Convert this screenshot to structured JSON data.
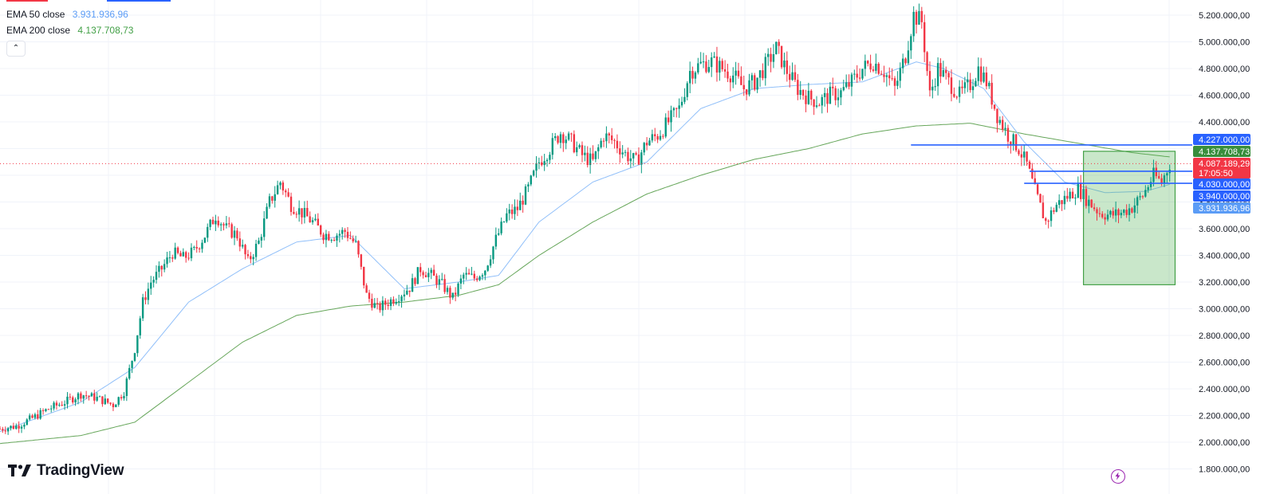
{
  "legend": {
    "ema50": {
      "name": "EMA 50 close",
      "value": "3.931.936,96",
      "color": "#5b9cf6"
    },
    "ema200": {
      "name": "EMA 200 close",
      "value": "4.137.708,73",
      "color": "#43a047"
    },
    "collapse_glyph": "⌃"
  },
  "branding": {
    "logo_text": "TradingView"
  },
  "colors": {
    "up": "#089981",
    "down": "#f23645",
    "ema50": "#90bff9",
    "ema200": "#66a65a",
    "hline": "#2962ff",
    "box_fill": "rgba(76,175,80,0.30)",
    "box_stroke": "#43a047",
    "price_line": "#f23645"
  },
  "chart_data": {
    "type": "candlestick",
    "yaxis": {
      "position": "right",
      "range": [
        1700000,
        5300000
      ],
      "tick_labels": [
        "5.200.000,00",
        "5.000.000,00",
        "4.800.000,00",
        "4.600.000,00",
        "4.400.000,00",
        "4.200.000,00",
        "4.000.000,00",
        "3.800.000,00",
        "3.600.000,00",
        "3.400.000,00",
        "3.200.000,00",
        "3.000.000,00",
        "2.800.000,00",
        "2.600.000,00",
        "2.400.000,00",
        "2.200.000,00",
        "2.000.000,00",
        "1.800.000,00"
      ],
      "tick_values": [
        5200000,
        5000000,
        4800000,
        4600000,
        4400000,
        4200000,
        4000000,
        3800000,
        3600000,
        3400000,
        3200000,
        3000000,
        2800000,
        2600000,
        2400000,
        2200000,
        2000000,
        1800000
      ]
    },
    "grid": true,
    "price_close_path": [
      [
        0,
        2100000
      ],
      [
        6,
        2120000
      ],
      [
        12,
        2180000
      ],
      [
        18,
        2250000
      ],
      [
        24,
        2300000
      ],
      [
        30,
        2360000
      ],
      [
        36,
        2330000
      ],
      [
        42,
        2280000
      ],
      [
        46,
        2380000
      ],
      [
        50,
        2700000
      ],
      [
        53,
        3050000
      ],
      [
        56,
        3200000
      ],
      [
        60,
        3300000
      ],
      [
        64,
        3420000
      ],
      [
        68,
        3380000
      ],
      [
        72,
        3430000
      ],
      [
        76,
        3550000
      ],
      [
        80,
        3700000
      ],
      [
        84,
        3600000
      ],
      [
        88,
        3550000
      ],
      [
        92,
        3350000
      ],
      [
        96,
        3500000
      ],
      [
        100,
        3800000
      ],
      [
        104,
        3950000
      ],
      [
        108,
        3780000
      ],
      [
        112,
        3720000
      ],
      [
        116,
        3650000
      ],
      [
        120,
        3560000
      ],
      [
        124,
        3550000
      ],
      [
        128,
        3580000
      ],
      [
        132,
        3480000
      ],
      [
        136,
        3100000
      ],
      [
        140,
        3000000
      ],
      [
        144,
        3050000
      ],
      [
        148,
        3100000
      ],
      [
        152,
        3160000
      ],
      [
        156,
        3300000
      ],
      [
        160,
        3250000
      ],
      [
        164,
        3180000
      ],
      [
        168,
        3080000
      ],
      [
        172,
        3250000
      ],
      [
        176,
        3230000
      ],
      [
        180,
        3300000
      ],
      [
        184,
        3520000
      ],
      [
        188,
        3700000
      ],
      [
        192,
        3750000
      ],
      [
        196,
        3900000
      ],
      [
        200,
        4100000
      ],
      [
        204,
        4200000
      ],
      [
        208,
        4320000
      ],
      [
        212,
        4250000
      ],
      [
        216,
        4150000
      ],
      [
        220,
        4100000
      ],
      [
        224,
        4300000
      ],
      [
        228,
        4250000
      ],
      [
        232,
        4160000
      ],
      [
        236,
        4100000
      ],
      [
        240,
        4250000
      ],
      [
        244,
        4300000
      ],
      [
        248,
        4400000
      ],
      [
        252,
        4500000
      ],
      [
        256,
        4780000
      ],
      [
        260,
        4830000
      ],
      [
        264,
        4850000
      ],
      [
        268,
        4800000
      ],
      [
        272,
        4750000
      ],
      [
        276,
        4650000
      ],
      [
        280,
        4700000
      ],
      [
        284,
        4820000
      ],
      [
        288,
        4950000
      ],
      [
        292,
        4780000
      ],
      [
        296,
        4650000
      ],
      [
        300,
        4580000
      ],
      [
        304,
        4550000
      ],
      [
        308,
        4600000
      ],
      [
        312,
        4620000
      ],
      [
        316,
        4700000
      ],
      [
        320,
        4800000
      ],
      [
        324,
        4850000
      ],
      [
        328,
        4780000
      ],
      [
        332,
        4650000
      ],
      [
        336,
        4900000
      ],
      [
        339,
        5200000
      ],
      [
        342,
        5150000
      ],
      [
        345,
        4600000
      ],
      [
        348,
        4800000
      ],
      [
        352,
        4700000
      ],
      [
        356,
        4600000
      ],
      [
        360,
        4680000
      ],
      [
        363,
        4800000
      ],
      [
        366,
        4700000
      ],
      [
        370,
        4450000
      ],
      [
        374,
        4300000
      ],
      [
        378,
        4200000
      ],
      [
        381,
        4080000
      ],
      [
        384,
        3880000
      ],
      [
        388,
        3650000
      ],
      [
        392,
        3780000
      ],
      [
        396,
        3840000
      ],
      [
        400,
        3900000
      ],
      [
        404,
        3800000
      ],
      [
        408,
        3720000
      ],
      [
        412,
        3700000
      ],
      [
        416,
        3720000
      ],
      [
        420,
        3760000
      ],
      [
        424,
        3850000
      ],
      [
        428,
        4000000
      ],
      [
        431,
        3950000
      ],
      [
        434,
        4087189
      ]
    ],
    "ema50_path": [
      [
        0,
        2080000
      ],
      [
        30,
        2300000
      ],
      [
        50,
        2560000
      ],
      [
        70,
        3050000
      ],
      [
        90,
        3300000
      ],
      [
        110,
        3500000
      ],
      [
        130,
        3550000
      ],
      [
        150,
        3150000
      ],
      [
        170,
        3200000
      ],
      [
        185,
        3250000
      ],
      [
        200,
        3650000
      ],
      [
        220,
        3950000
      ],
      [
        240,
        4100000
      ],
      [
        260,
        4500000
      ],
      [
        280,
        4650000
      ],
      [
        300,
        4680000
      ],
      [
        320,
        4700000
      ],
      [
        340,
        4850000
      ],
      [
        350,
        4800000
      ],
      [
        365,
        4650000
      ],
      [
        380,
        4250000
      ],
      [
        395,
        3950000
      ],
      [
        410,
        3870000
      ],
      [
        425,
        3880000
      ],
      [
        434,
        3931937
      ]
    ],
    "ema200_path": [
      [
        0,
        1990000
      ],
      [
        30,
        2050000
      ],
      [
        50,
        2150000
      ],
      [
        70,
        2450000
      ],
      [
        90,
        2750000
      ],
      [
        110,
        2950000
      ],
      [
        130,
        3020000
      ],
      [
        150,
        3050000
      ],
      [
        170,
        3100000
      ],
      [
        185,
        3180000
      ],
      [
        200,
        3400000
      ],
      [
        220,
        3650000
      ],
      [
        240,
        3860000
      ],
      [
        260,
        4000000
      ],
      [
        280,
        4120000
      ],
      [
        300,
        4200000
      ],
      [
        320,
        4310000
      ],
      [
        340,
        4370000
      ],
      [
        360,
        4390000
      ],
      [
        380,
        4310000
      ],
      [
        400,
        4240000
      ],
      [
        420,
        4170000
      ],
      [
        434,
        4137709
      ]
    ],
    "horizontal_lines": [
      {
        "value": 4227000,
        "label": "4.227.000,00",
        "from_x": 338
      },
      {
        "value": 4030000,
        "label": "4.030.000,00",
        "from_x": 382
      },
      {
        "value": 3940000,
        "label": "3.940.000,00",
        "from_x": 380
      }
    ],
    "rectangle": {
      "x_from": 402,
      "x_to": 436,
      "y_top": 4180000,
      "y_bottom": 3180000
    },
    "price_labels": [
      {
        "kind": "hline",
        "text": "4.227.000,00",
        "value": 4227000,
        "color": "#2962ff"
      },
      {
        "kind": "ema200",
        "text": "4.137.708,73",
        "value": 4137709,
        "color": "#388e3c"
      },
      {
        "kind": "last",
        "text": "4.087.189,29",
        "sub": "17:05:50",
        "value": 4087189,
        "color": "#f23645"
      },
      {
        "kind": "hline",
        "text": "4.030.000,00",
        "value": 4030000,
        "color": "#2962ff"
      },
      {
        "kind": "hline",
        "text": "3.940.000,00",
        "value": 3940000,
        "color": "#2962ff"
      },
      {
        "kind": "ema50",
        "text": "3.931.936,96",
        "value": 3931937,
        "color": "#5b9cf6"
      }
    ],
    "x_domain": [
      0,
      440
    ],
    "last_price": 4087189.29,
    "countdown": "17:05:50"
  }
}
